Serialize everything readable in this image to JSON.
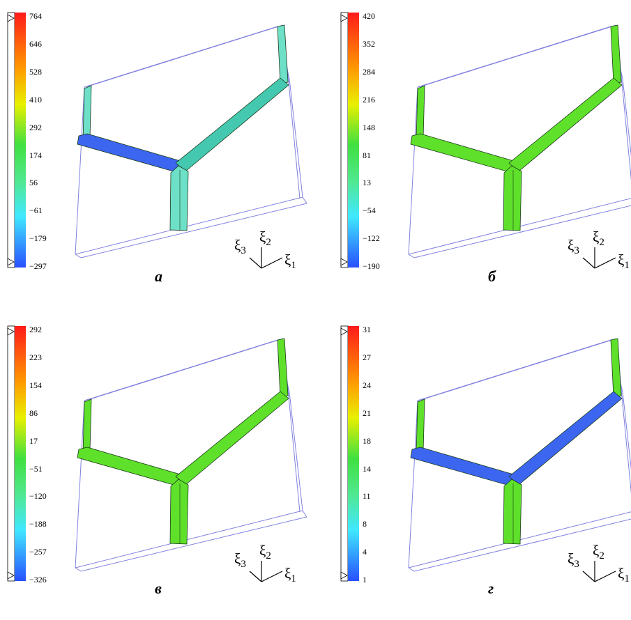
{
  "panels": [
    {
      "caption": "а",
      "scale_ticks": [
        "764",
        "646",
        "528",
        "410",
        "292",
        "174",
        "56",
        "−61",
        "−179",
        "−297"
      ],
      "members": {
        "left_arm": "blue",
        "right_arm": "mix",
        "stem": "teal",
        "left_post": "teal",
        "right_post": "teal"
      }
    },
    {
      "caption": "б",
      "scale_ticks": [
        "420",
        "352",
        "284",
        "216",
        "148",
        "81",
        "13",
        "−54",
        "−122",
        "−190"
      ],
      "members": {
        "left_arm": "green",
        "right_arm": "green",
        "stem": "green",
        "left_post": "green",
        "right_post": "green"
      }
    },
    {
      "caption": "в",
      "scale_ticks": [
        "292",
        "223",
        "154",
        "86",
        "17",
        "−51",
        "−120",
        "−188",
        "−257",
        "−326"
      ],
      "members": {
        "left_arm": "green",
        "right_arm": "green",
        "stem": "green",
        "left_post": "green",
        "right_post": "green"
      }
    },
    {
      "caption": "г",
      "scale_ticks": [
        "31",
        "27",
        "24",
        "21",
        "18",
        "14",
        "11",
        "8",
        "4",
        "1"
      ],
      "members": {
        "left_arm": "blue",
        "right_arm": "blue",
        "stem": "green",
        "left_post": "green",
        "right_post": "green"
      }
    }
  ],
  "axes": {
    "xi1": {
      "symbol": "ξ",
      "index": "1"
    },
    "xi2": {
      "symbol": "ξ",
      "index": "2"
    },
    "xi3": {
      "symbol": "ξ",
      "index": "3"
    }
  },
  "colors": {
    "frame": "#8080e0",
    "member_outline": "#1a3a1a",
    "green": "#5fe02a",
    "teal": "#6ee0c8",
    "blue": "#3c66f0",
    "mix": "#45c8b0"
  }
}
